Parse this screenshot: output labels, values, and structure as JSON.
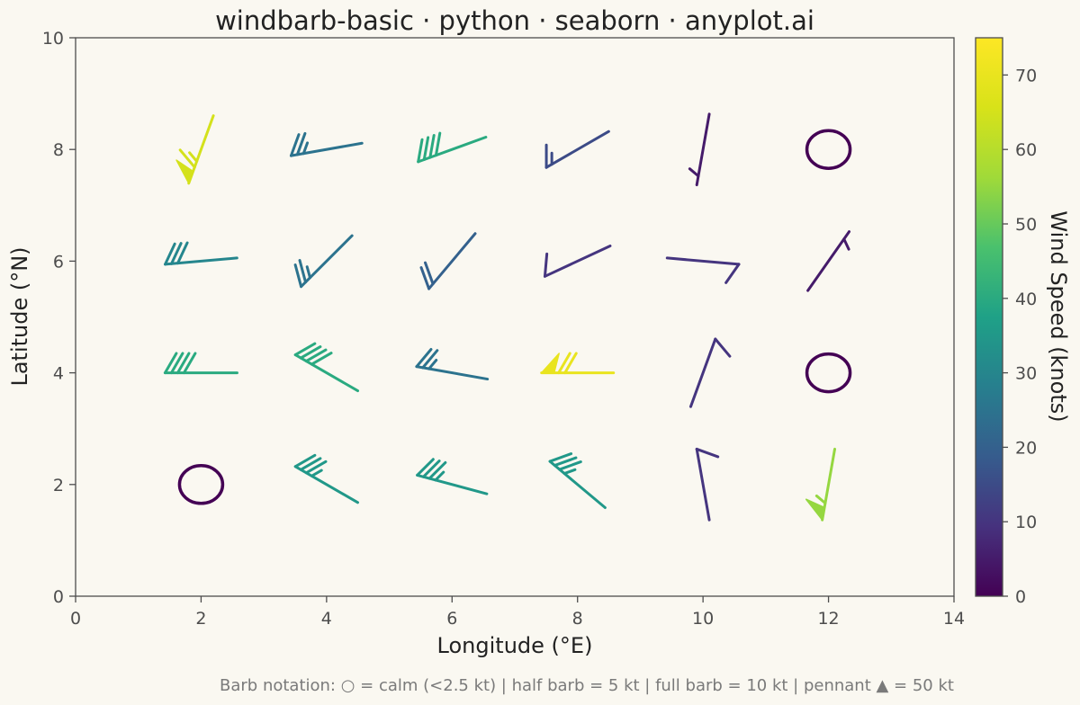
{
  "chart_data": {
    "type": "windbarb",
    "title": "windbarb-basic · python · seaborn · anyplot.ai",
    "xlabel": "Longitude (°E)",
    "ylabel": "Latitude (°N)",
    "xlim": [
      0,
      14
    ],
    "ylim": [
      0,
      10
    ],
    "xticks": [
      0,
      2,
      4,
      6,
      8,
      10,
      12,
      14
    ],
    "yticks": [
      0,
      2,
      4,
      6,
      8,
      10
    ],
    "grid": false,
    "colorbar": {
      "label": "Wind Speed (knots)",
      "range": [
        0,
        75
      ],
      "ticks": [
        0,
        10,
        20,
        30,
        40,
        50,
        60,
        70
      ],
      "colormap": "viridis"
    },
    "footnote": "Barb notation: ○ = calm (<2.5 kt) | half barb = 5 kt | full barb = 10 kt | pennant ▲ = 50 kt",
    "points": [
      {
        "lon": 2,
        "lat": 8,
        "speed": 65,
        "dir": 200
      },
      {
        "lon": 4,
        "lat": 8,
        "speed": 25,
        "dir": 260
      },
      {
        "lon": 6,
        "lat": 8,
        "speed": 40,
        "dir": 250
      },
      {
        "lon": 8,
        "lat": 8,
        "speed": 15,
        "dir": 240
      },
      {
        "lon": 10,
        "lat": 8,
        "speed": 5,
        "dir": 190
      },
      {
        "lon": 12,
        "lat": 8,
        "speed": 0,
        "dir": 0
      },
      {
        "lon": 2,
        "lat": 6,
        "speed": 30,
        "dir": 265
      },
      {
        "lon": 4,
        "lat": 6,
        "speed": 25,
        "dir": 225
      },
      {
        "lon": 6,
        "lat": 6,
        "speed": 20,
        "dir": 220
      },
      {
        "lon": 8,
        "lat": 6,
        "speed": 10,
        "dir": 245
      },
      {
        "lon": 10,
        "lat": 6,
        "speed": 10,
        "dir": 95
      },
      {
        "lon": 12,
        "lat": 6,
        "speed": 5,
        "dir": 35
      },
      {
        "lon": 2,
        "lat": 4,
        "speed": 40,
        "dir": 270
      },
      {
        "lon": 4,
        "lat": 4,
        "speed": 40,
        "dir": 300
      },
      {
        "lon": 6,
        "lat": 4,
        "speed": 25,
        "dir": 280
      },
      {
        "lon": 8,
        "lat": 4,
        "speed": 70,
        "dir": 270
      },
      {
        "lon": 10,
        "lat": 4,
        "speed": 10,
        "dir": 20
      },
      {
        "lon": 12,
        "lat": 4,
        "speed": 0,
        "dir": 0
      },
      {
        "lon": 2,
        "lat": 2,
        "speed": 0,
        "dir": 0
      },
      {
        "lon": 4,
        "lat": 2,
        "speed": 35,
        "dir": 300
      },
      {
        "lon": 6,
        "lat": 2,
        "speed": 35,
        "dir": 285
      },
      {
        "lon": 8,
        "lat": 2,
        "speed": 35,
        "dir": 310
      },
      {
        "lon": 10,
        "lat": 2,
        "speed": 10,
        "dir": 350
      },
      {
        "lon": 12,
        "lat": 2,
        "speed": 55,
        "dir": 190
      }
    ]
  }
}
